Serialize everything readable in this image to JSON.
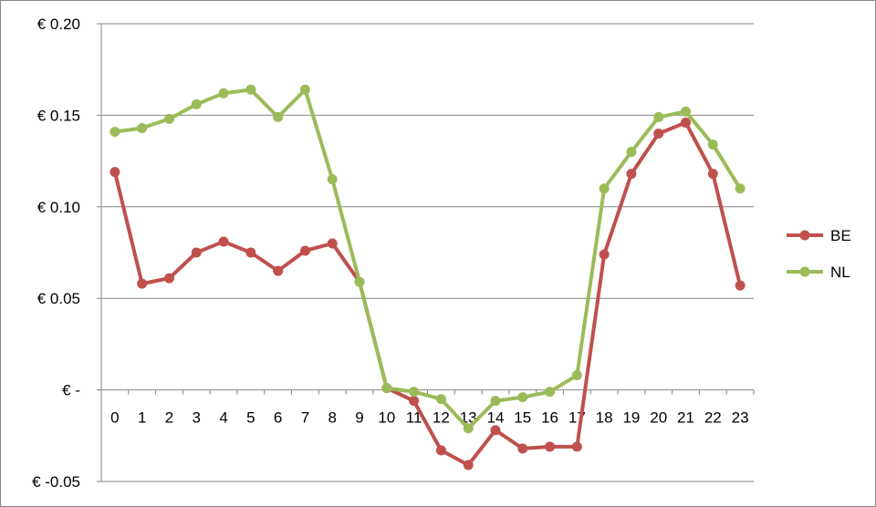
{
  "chart_data": {
    "type": "line",
    "title": "",
    "xlabel": "",
    "ylabel": "",
    "x": [
      "0",
      "1",
      "2",
      "3",
      "4",
      "5",
      "6",
      "7",
      "8",
      "9",
      "10",
      "11",
      "12",
      "13",
      "14",
      "15",
      "16",
      "17",
      "18",
      "19",
      "20",
      "21",
      "22",
      "23"
    ],
    "y_tick_labels": [
      "€ 0.20",
      "€ 0.15",
      "€ 0.10",
      "€ 0.05",
      "€ -",
      "€ -0.05"
    ],
    "y_tick_values": [
      0.2,
      0.15,
      0.1,
      0.05,
      0.0,
      -0.05
    ],
    "ylim": [
      -0.05,
      0.2
    ],
    "grid": "horizontal",
    "legend_position": "right",
    "series": [
      {
        "name": "BE",
        "color": "#C0504D",
        "values": [
          0.119,
          0.058,
          0.061,
          0.075,
          0.081,
          0.075,
          0.065,
          0.076,
          0.08,
          0.059,
          0.001,
          -0.006,
          -0.033,
          -0.041,
          -0.022,
          -0.032,
          -0.031,
          -0.031,
          0.074,
          0.118,
          0.14,
          0.146,
          0.118,
          0.057
        ]
      },
      {
        "name": "NL",
        "color": "#9BBB59",
        "values": [
          0.141,
          0.143,
          0.148,
          0.156,
          0.162,
          0.164,
          0.149,
          0.164,
          0.115,
          0.059,
          0.001,
          -0.001,
          -0.005,
          -0.021,
          -0.006,
          -0.004,
          -0.001,
          0.008,
          0.11,
          0.13,
          0.149,
          0.152,
          0.134,
          0.11
        ]
      }
    ]
  }
}
